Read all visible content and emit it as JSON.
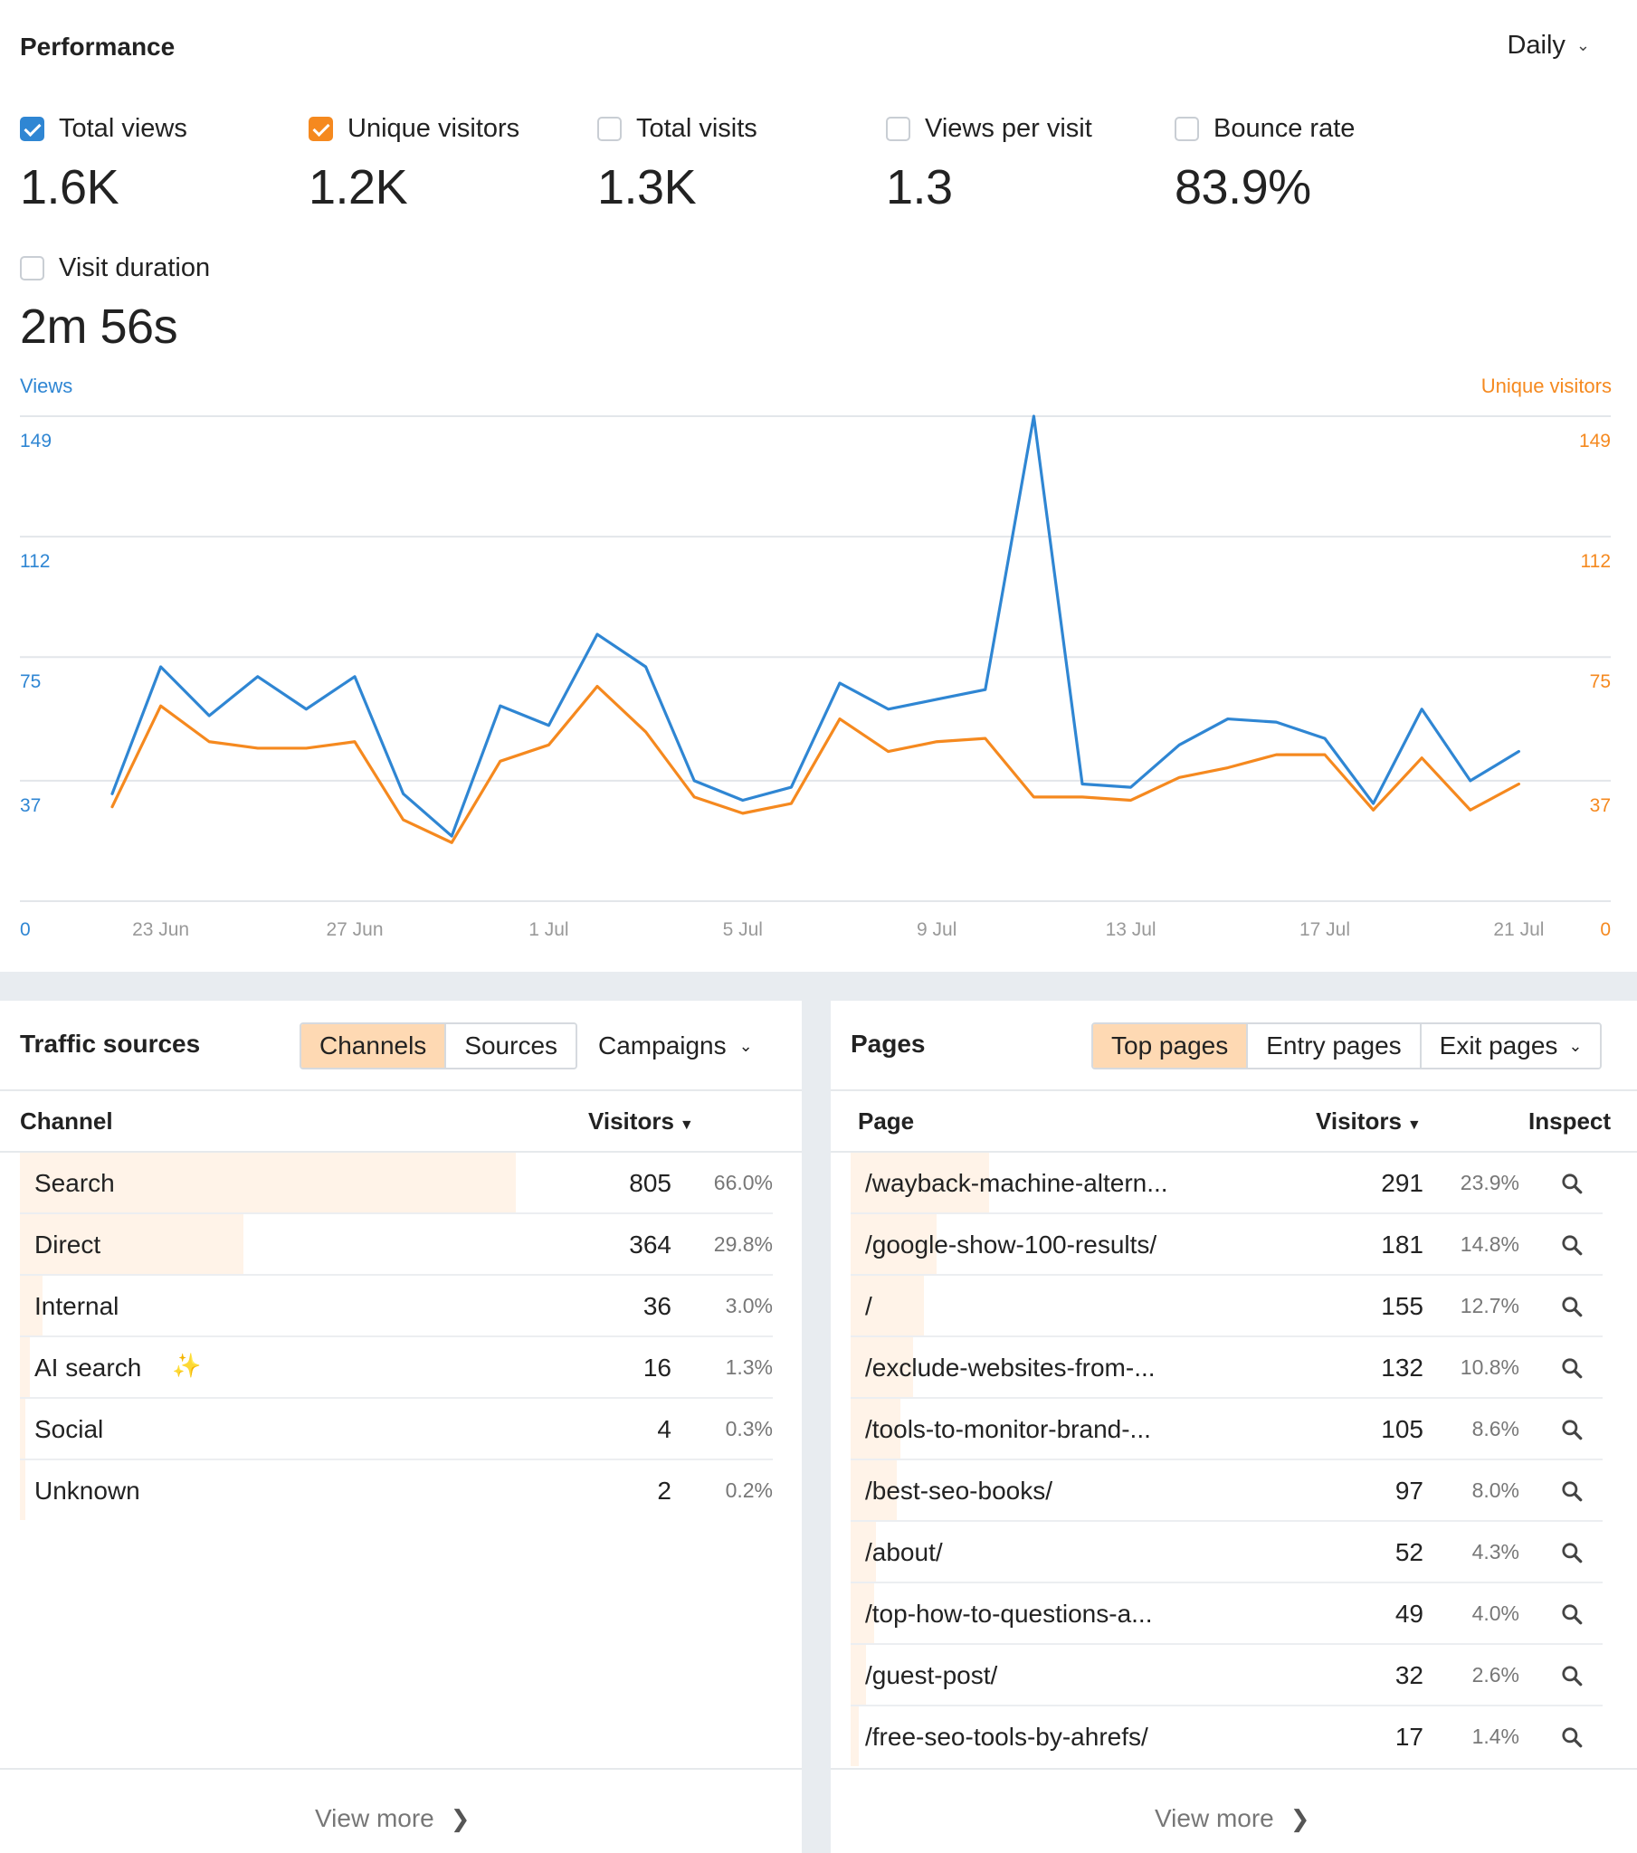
{
  "performance": {
    "title": "Performance",
    "period": "Daily",
    "metrics": [
      {
        "label": "Total views",
        "value": "1.6K",
        "checked": true,
        "color": "#2f86d3"
      },
      {
        "label": "Unique visitors",
        "value": "1.2K",
        "checked": true,
        "color": "#f5891f"
      },
      {
        "label": "Total visits",
        "value": "1.3K",
        "checked": false
      },
      {
        "label": "Views per visit",
        "value": "1.3",
        "checked": false
      },
      {
        "label": "Bounce rate",
        "value": "83.9%",
        "checked": false
      },
      {
        "label": "Visit duration",
        "value": "2m 56s",
        "checked": false
      }
    ]
  },
  "chart_data": {
    "type": "line",
    "y_left_label": "Views",
    "y_right_label": "Unique visitors",
    "ylim": [
      0,
      149
    ],
    "y_ticks": [
      0,
      37,
      75,
      112,
      149
    ],
    "x_tick_labels": [
      {
        "i": 1,
        "label": "23 Jun"
      },
      {
        "i": 5,
        "label": "27 Jun"
      },
      {
        "i": 9,
        "label": "1 Jul"
      },
      {
        "i": 13,
        "label": "5 Jul"
      },
      {
        "i": 17,
        "label": "9 Jul"
      },
      {
        "i": 21,
        "label": "13 Jul"
      },
      {
        "i": 25,
        "label": "17 Jul"
      },
      {
        "i": 29,
        "label": "21 Jul"
      }
    ],
    "x": [
      "22 Jun",
      "23 Jun",
      "24 Jun",
      "25 Jun",
      "26 Jun",
      "27 Jun",
      "28 Jun",
      "29 Jun",
      "30 Jun",
      "1 Jul",
      "2 Jul",
      "3 Jul",
      "4 Jul",
      "5 Jul",
      "6 Jul",
      "7 Jul",
      "8 Jul",
      "9 Jul",
      "10 Jul",
      "11 Jul",
      "12 Jul",
      "13 Jul",
      "14 Jul",
      "15 Jul",
      "16 Jul",
      "17 Jul",
      "18 Jul",
      "19 Jul",
      "20 Jul",
      "21 Jul"
    ],
    "series": [
      {
        "name": "Views",
        "color": "#2f86d3",
        "values": [
          33,
          72,
          57,
          69,
          59,
          69,
          33,
          20,
          60,
          54,
          82,
          72,
          37,
          31,
          35,
          67,
          59,
          62,
          65,
          149,
          36,
          35,
          48,
          56,
          55,
          50,
          30,
          59,
          37,
          46
        ]
      },
      {
        "name": "Unique visitors",
        "color": "#f5891f",
        "values": [
          29,
          60,
          49,
          47,
          47,
          49,
          25,
          18,
          43,
          48,
          66,
          52,
          32,
          27,
          30,
          56,
          46,
          49,
          50,
          32,
          32,
          31,
          38,
          41,
          45,
          45,
          28,
          44,
          28,
          36
        ]
      }
    ]
  },
  "traffic": {
    "title": "Traffic sources",
    "tabs": [
      "Channels",
      "Sources"
    ],
    "dropdown": "Campaigns",
    "col_channel": "Channel",
    "col_visitors": "Visitors",
    "rows": [
      {
        "name": "Search",
        "visitors": "805",
        "pct": "66.0%",
        "frac": 0.66
      },
      {
        "name": "Direct",
        "visitors": "364",
        "pct": "29.8%",
        "frac": 0.298
      },
      {
        "name": "Internal",
        "visitors": "36",
        "pct": "3.0%",
        "frac": 0.03
      },
      {
        "name": "AI search",
        "visitors": "16",
        "pct": "1.3%",
        "frac": 0.013
      },
      {
        "name": "Social",
        "visitors": "4",
        "pct": "0.3%",
        "frac": 0.003
      },
      {
        "name": "Unknown",
        "visitors": "2",
        "pct": "0.2%",
        "frac": 0.002
      }
    ],
    "view_more": "View more"
  },
  "pages": {
    "title": "Pages",
    "tabs": [
      "Top pages",
      "Entry pages"
    ],
    "dropdown": "Exit pages",
    "col_page": "Page",
    "col_visitors": "Visitors",
    "col_inspect": "Inspect",
    "rows": [
      {
        "name": "/wayback-machine-altern...",
        "visitors": "291",
        "pct": "23.9%",
        "frac": 0.239
      },
      {
        "name": "/google-show-100-results/",
        "visitors": "181",
        "pct": "14.8%",
        "frac": 0.148
      },
      {
        "name": "/",
        "visitors": "155",
        "pct": "12.7%",
        "frac": 0.127
      },
      {
        "name": "/exclude-websites-from-...",
        "visitors": "132",
        "pct": "10.8%",
        "frac": 0.108
      },
      {
        "name": "/tools-to-monitor-brand-...",
        "visitors": "105",
        "pct": "8.6%",
        "frac": 0.086
      },
      {
        "name": "/best-seo-books/",
        "visitors": "97",
        "pct": "8.0%",
        "frac": 0.08
      },
      {
        "name": "/about/",
        "visitors": "52",
        "pct": "4.3%",
        "frac": 0.043
      },
      {
        "name": "/top-how-to-questions-a...",
        "visitors": "49",
        "pct": "4.0%",
        "frac": 0.04
      },
      {
        "name": "/guest-post/",
        "visitors": "32",
        "pct": "2.6%",
        "frac": 0.026
      },
      {
        "name": "/free-seo-tools-by-ahrefs/",
        "visitors": "17",
        "pct": "1.4%",
        "frac": 0.014
      }
    ],
    "view_more": "View more"
  }
}
